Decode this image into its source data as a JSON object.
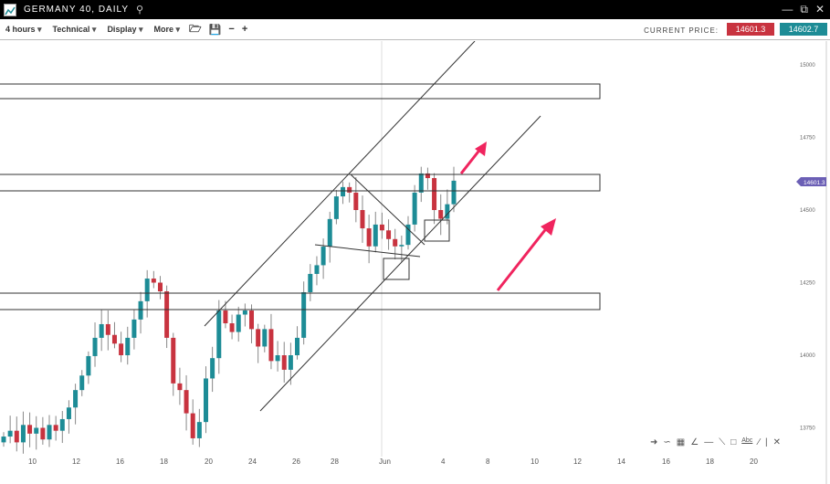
{
  "window": {
    "title": "GERMANY 40, DAILY",
    "icons": [
      "chart-logo-icon",
      "search-icon",
      "minimize-icon",
      "popout-icon",
      "close-icon"
    ]
  },
  "toolbar": {
    "menus": [
      "4 hours",
      "Technical",
      "Display",
      "More"
    ],
    "icons": [
      "open-folder-icon",
      "save-icon",
      "zoom-out-icon",
      "zoom-in-icon"
    ],
    "current_price_label": "CURRENT PRICE:",
    "bid": "14601.3",
    "ask": "14602.7"
  },
  "colors": {
    "up": "#1d8c96",
    "down": "#c8333f",
    "price_tag": "#6b5fb5",
    "arrow": "#f0245e"
  },
  "price_axis": {
    "ticks": [
      "15000",
      "14750",
      "14500",
      "14250",
      "14000",
      "13750"
    ],
    "current": "14601.3"
  },
  "time_axis": {
    "ticks": [
      "10",
      "12",
      "16",
      "18",
      "20",
      "24",
      "26",
      "28",
      "Jun",
      "4",
      "8",
      "10",
      "12",
      "14",
      "16",
      "18",
      "20"
    ]
  },
  "chart_data": {
    "type": "candlestick",
    "ylim": [
      13700,
      15050
    ],
    "close": [
      13720,
      13740,
      13700,
      13760,
      13730,
      13750,
      13710,
      13760,
      13740,
      13780,
      13820,
      13880,
      13930,
      13997,
      14060,
      14107,
      14070,
      14040,
      14000,
      14060,
      14123,
      14186,
      14264,
      14250,
      14220,
      14060,
      13903,
      13880,
      13800,
      13714,
      13770,
      13920,
      13990,
      14154,
      14110,
      14080,
      14140,
      14154,
      14090,
      14030,
      14090,
      13980,
      14000,
      13950,
      14000,
      14060,
      14217,
      14280,
      14310,
      14374,
      14469,
      14547,
      14579,
      14560,
      14500,
      14437,
      14375,
      14450,
      14430,
      14400,
      14375,
      14380,
      14450,
      14560,
      14626,
      14610,
      14500,
      14470,
      14520,
      14601
    ]
  },
  "draw_tools": [
    "pencil-icon",
    "curve-icon",
    "grid-icon",
    "fan-icon",
    "horizontal-line-icon",
    "trendline-icon",
    "rectangle-icon",
    "Abc",
    "ray-icon",
    "close-icon"
  ]
}
